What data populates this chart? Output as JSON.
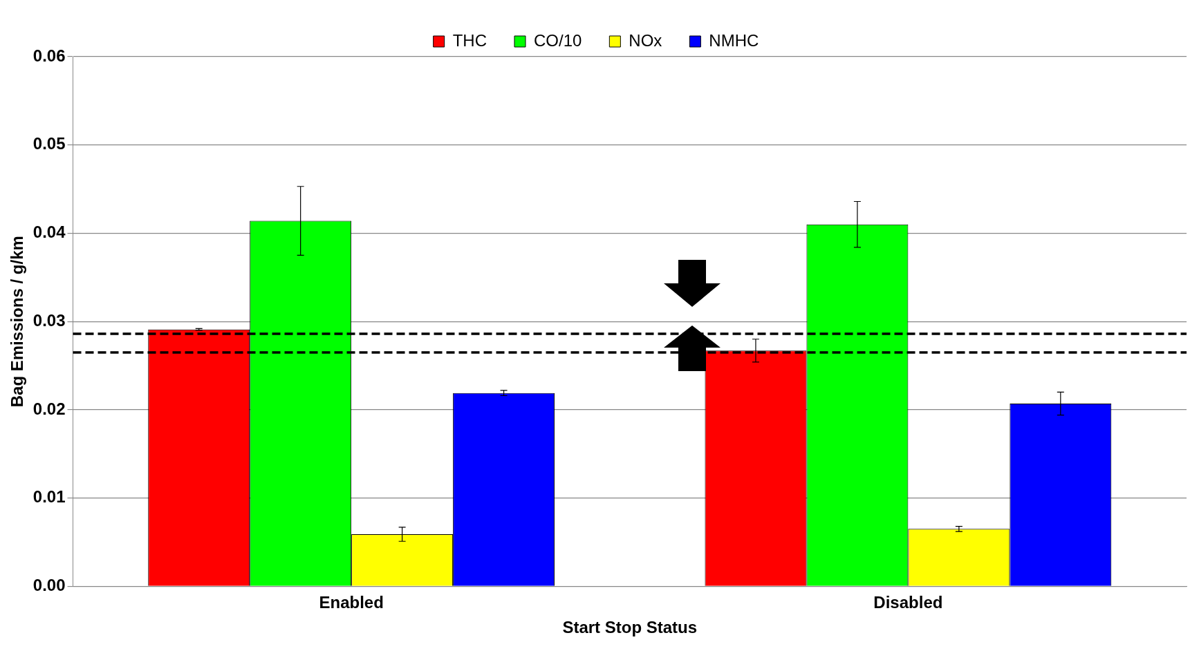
{
  "chart_data": {
    "type": "bar",
    "xlabel": "Start Stop Status",
    "ylabel": "Bag Emissions / g/km",
    "categories": [
      "Enabled",
      "Disabled"
    ],
    "series": [
      {
        "name": "THC",
        "color": "#ff0000",
        "values": [
          0.0291,
          0.0267
        ],
        "errors": [
          0.0001,
          0.0013
        ]
      },
      {
        "name": "CO/10",
        "color": "#00ff00",
        "values": [
          0.0414,
          0.041
        ],
        "errors": [
          0.0039,
          0.0026
        ]
      },
      {
        "name": "NOx",
        "color": "#ffff00",
        "values": [
          0.0059,
          0.0065
        ],
        "errors": [
          0.0008,
          0.0003
        ]
      },
      {
        "name": "NMHC",
        "color": "#0000ff",
        "values": [
          0.0219,
          0.0207
        ],
        "errors": [
          0.0003,
          0.0013
        ]
      }
    ],
    "ylim": [
      0,
      0.06
    ],
    "yticks": [
      {
        "value": 0,
        "label": "0.00"
      },
      {
        "value": 0.01,
        "label": "0.01"
      },
      {
        "value": 0.02,
        "label": "0.02"
      },
      {
        "value": 0.03,
        "label": "0.03"
      },
      {
        "value": 0.04,
        "label": "0.04"
      },
      {
        "value": 0.05,
        "label": "0.05"
      },
      {
        "value": 0.06,
        "label": "0.06"
      }
    ],
    "ref_lines": [
      {
        "axis": "y",
        "value": 0.0286,
        "line_style": "dashed",
        "color": "#000000"
      },
      {
        "axis": "y",
        "value": 0.0265,
        "line_style": "dashed",
        "color": "#000000"
      }
    ],
    "grid": "y",
    "legend": "top"
  }
}
